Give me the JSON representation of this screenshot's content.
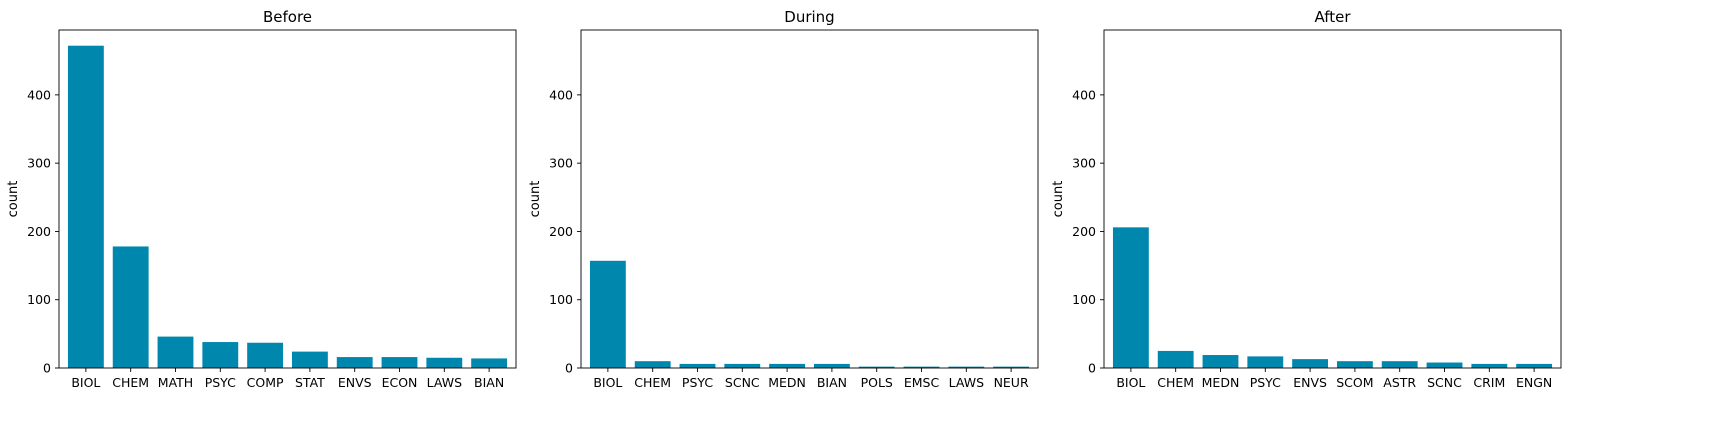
{
  "chart_data": [
    {
      "type": "bar",
      "title": "Before",
      "ylabel": "count",
      "xlabel": "",
      "ylim": [
        0,
        495
      ],
      "yticks": [
        0,
        100,
        200,
        300,
        400
      ],
      "color": "#0087ad",
      "categories": [
        "BIOL",
        "CHEM",
        "MATH",
        "PSYC",
        "COMP",
        "STAT",
        "ENVS",
        "ECON",
        "LAWS",
        "BIAN"
      ],
      "values": [
        472,
        178,
        46,
        38,
        37,
        24,
        16,
        16,
        15,
        14
      ]
    },
    {
      "type": "bar",
      "title": "During",
      "ylabel": "count",
      "xlabel": "",
      "ylim": [
        0,
        495
      ],
      "yticks": [
        0,
        100,
        200,
        300,
        400
      ],
      "color": "#0087ad",
      "categories": [
        "BIOL",
        "CHEM",
        "PSYC",
        "SCNC",
        "MEDN",
        "BIAN",
        "POLS",
        "EMSC",
        "LAWS",
        "NEUR"
      ],
      "values": [
        157,
        10,
        6,
        6,
        6,
        6,
        2,
        2,
        2,
        2
      ]
    },
    {
      "type": "bar",
      "title": "After",
      "ylabel": "count",
      "xlabel": "",
      "ylim": [
        0,
        495
      ],
      "yticks": [
        0,
        100,
        200,
        300,
        400
      ],
      "color": "#0087ad",
      "categories": [
        "BIOL",
        "CHEM",
        "MEDN",
        "PSYC",
        "ENVS",
        "SCOM",
        "ASTR",
        "SCNC",
        "CRIM",
        "ENGN"
      ],
      "values": [
        206,
        25,
        19,
        17,
        13,
        10,
        10,
        8,
        6,
        6
      ]
    }
  ]
}
